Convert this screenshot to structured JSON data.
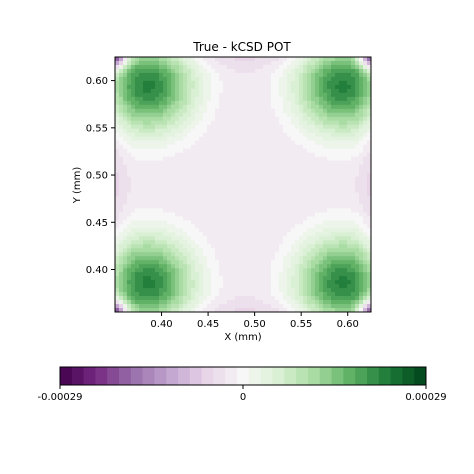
{
  "chart_data": {
    "type": "heatmap",
    "title": "True - kCSD POT",
    "xlabel": "X (mm)",
    "ylabel": "Y (mm)",
    "xlim": [
      0.35,
      0.625
    ],
    "ylim": [
      0.355,
      0.625
    ],
    "xticks": [
      0.4,
      0.45,
      0.5,
      0.55,
      0.6
    ],
    "xtick_labels": [
      "0.40",
      "0.45",
      "0.50",
      "0.55",
      "0.60"
    ],
    "yticks": [
      0.4,
      0.45,
      0.5,
      0.55,
      0.6
    ],
    "ytick_labels": [
      "0.40",
      "0.45",
      "0.50",
      "0.55",
      "0.60"
    ],
    "colormap": "PRGn",
    "vmin": -0.00029,
    "vmax": 0.00029,
    "colorbar": {
      "orientation": "horizontal",
      "ticks": [
        -0.00029,
        0,
        0.00029
      ],
      "tick_labels": [
        "-0.00029",
        "0",
        "0.00029"
      ],
      "levels": 31
    },
    "maxima": [
      {
        "x": 0.385,
        "y": 0.595,
        "value": 0.00022
      },
      {
        "x": 0.595,
        "y": 0.595,
        "value": 0.00022
      },
      {
        "x": 0.385,
        "y": 0.385,
        "value": 0.00022
      },
      {
        "x": 0.595,
        "y": 0.385,
        "value": 0.00022
      }
    ],
    "center_value": -1e-05,
    "background_value": -3e-05,
    "edge_minimum_value": -6e-05,
    "corner_minimum_value": -0.00029
  }
}
